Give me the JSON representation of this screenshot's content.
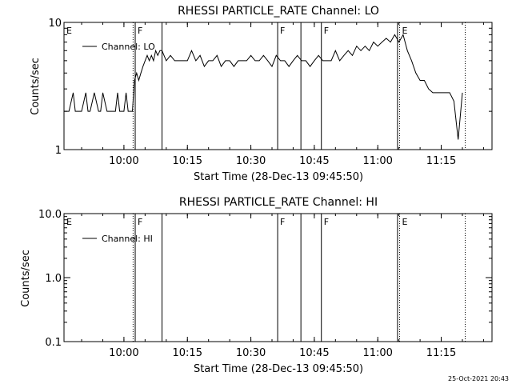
{
  "footer_timestamp": "25-Oct-2021 20:43",
  "chart_data": [
    {
      "type": "line",
      "title": "RHESSI PARTICLE_RATE Channel: LO",
      "xlabel": "Start Time (28-Dec-13 09:45:50)",
      "ylabel": "Counts/sec",
      "yscale": "log",
      "ylim": [
        1,
        10
      ],
      "ytick_values": [
        1,
        10
      ],
      "ytick_labels": [
        "1",
        "10"
      ],
      "xlim": [
        "09:45:50",
        "11:27:00"
      ],
      "xticks": [
        "10:00",
        "10:15",
        "10:30",
        "10:45",
        "11:00",
        "11:15"
      ],
      "legend": "top-left",
      "series": [
        {
          "name": "Channel: LO",
          "x": [
            "09:45:50",
            "09:47:00",
            "09:48:00",
            "09:48:30",
            "09:49:00",
            "09:50:00",
            "09:51:00",
            "09:51:30",
            "09:52:00",
            "09:53:00",
            "09:54:00",
            "09:54:30",
            "09:55:00",
            "09:56:00",
            "09:57:00",
            "09:58:00",
            "09:58:30",
            "09:59:00",
            "10:00:00",
            "10:00:30",
            "10:01:00",
            "10:02:00",
            "10:02:30",
            "10:03:00",
            "10:03:30",
            "10:04:00",
            "10:04:30",
            "10:05:00",
            "10:05:30",
            "10:06:00",
            "10:06:30",
            "10:07:00",
            "10:07:30",
            "10:08:00",
            "10:08:30",
            "10:09:00",
            "10:10:00",
            "10:11:00",
            "10:12:00",
            "10:13:00",
            "10:14:00",
            "10:15:00",
            "10:16:00",
            "10:17:00",
            "10:18:00",
            "10:19:00",
            "10:20:00",
            "10:21:00",
            "10:22:00",
            "10:23:00",
            "10:24:00",
            "10:25:00",
            "10:26:00",
            "10:27:00",
            "10:28:00",
            "10:29:00",
            "10:30:00",
            "10:31:00",
            "10:32:00",
            "10:33:00",
            "10:34:00",
            "10:35:00",
            "10:36:00",
            "10:37:00",
            "10:38:00",
            "10:39:00",
            "10:40:00",
            "10:41:00",
            "10:42:00",
            "10:43:00",
            "10:44:00",
            "10:45:00",
            "10:46:00",
            "10:47:00",
            "10:48:00",
            "10:49:00",
            "10:50:00",
            "10:51:00",
            "10:52:00",
            "10:53:00",
            "10:54:00",
            "10:55:00",
            "10:56:00",
            "10:57:00",
            "10:58:00",
            "10:59:00",
            "11:00:00",
            "11:01:00",
            "11:02:00",
            "11:03:00",
            "11:04:00",
            "11:05:00",
            "11:06:00",
            "11:07:00",
            "11:08:00",
            "11:09:00",
            "11:10:00",
            "11:11:00",
            "11:12:00",
            "11:13:00",
            "11:14:00",
            "11:15:00",
            "11:16:00",
            "11:17:00",
            "11:18:00",
            "11:19:00",
            "11:20:00"
          ],
          "y": [
            2,
            2,
            2.8,
            2,
            2,
            2,
            2.8,
            2,
            2,
            2.8,
            2,
            2,
            2.8,
            2,
            2,
            2,
            2.8,
            2,
            2,
            2.8,
            2,
            2,
            3.5,
            4,
            3.5,
            4,
            4.5,
            5,
            5.5,
            5,
            5.5,
            5,
            6,
            5.5,
            6,
            6,
            5,
            5.5,
            5,
            5,
            5,
            5,
            6,
            5,
            5.5,
            4.5,
            5,
            5,
            5.5,
            4.5,
            5,
            5,
            4.5,
            5,
            5,
            5,
            5.5,
            5,
            5,
            5.5,
            5,
            4.5,
            5.5,
            5,
            5,
            4.5,
            5,
            5.5,
            5,
            5,
            4.5,
            5,
            5.5,
            5,
            5,
            5,
            6,
            5,
            5.5,
            6,
            5.5,
            6.5,
            6,
            6.5,
            6,
            7,
            6.5,
            7,
            7.5,
            7,
            8,
            7,
            8,
            6,
            5,
            4,
            3.5,
            3.5,
            3,
            2.8,
            2.8,
            2.8,
            2.8,
            2.8,
            2.4,
            1.2,
            2.8
          ]
        }
      ],
      "flag_lines": [
        {
          "time": "09:45:50",
          "label": "E",
          "style": "solid"
        },
        {
          "time": "10:02:10",
          "label": "",
          "style": "dotted"
        },
        {
          "time": "10:02:40",
          "label": "F",
          "style": "solid"
        },
        {
          "time": "10:09:00",
          "label": "",
          "style": "solid"
        },
        {
          "time": "10:36:20",
          "label": "F",
          "style": "solid"
        },
        {
          "time": "10:41:50",
          "label": "",
          "style": "solid"
        },
        {
          "time": "10:46:40",
          "label": "F",
          "style": "solid"
        },
        {
          "time": "11:04:40",
          "label": "",
          "style": "solid"
        },
        {
          "time": "11:05:10",
          "label": "E",
          "style": "dotted"
        },
        {
          "time": "11:20:40",
          "label": "",
          "style": "dotted"
        }
      ]
    },
    {
      "type": "line",
      "title": "RHESSI PARTICLE_RATE Channel: HI",
      "xlabel": "Start Time (28-Dec-13 09:45:50)",
      "ylabel": "Counts/sec",
      "yscale": "log",
      "ylim": [
        0.1,
        10
      ],
      "ytick_values": [
        0.1,
        1,
        10
      ],
      "ytick_labels": [
        "0.1",
        "1.0",
        "10.0"
      ],
      "xlim": [
        "09:45:50",
        "11:27:00"
      ],
      "xticks": [
        "10:00",
        "10:15",
        "10:30",
        "10:45",
        "11:00",
        "11:15"
      ],
      "legend": "top-left",
      "series": [
        {
          "name": "Channel: HI",
          "x": [],
          "y": []
        }
      ],
      "flag_lines": [
        {
          "time": "09:45:50",
          "label": "E",
          "style": "solid"
        },
        {
          "time": "10:02:10",
          "label": "",
          "style": "dotted"
        },
        {
          "time": "10:02:40",
          "label": "F",
          "style": "solid"
        },
        {
          "time": "10:09:00",
          "label": "",
          "style": "solid"
        },
        {
          "time": "10:36:20",
          "label": "F",
          "style": "solid"
        },
        {
          "time": "10:41:50",
          "label": "",
          "style": "solid"
        },
        {
          "time": "10:46:40",
          "label": "F",
          "style": "solid"
        },
        {
          "time": "11:04:40",
          "label": "",
          "style": "solid"
        },
        {
          "time": "11:05:10",
          "label": "E",
          "style": "dotted"
        },
        {
          "time": "11:20:40",
          "label": "",
          "style": "dotted"
        }
      ]
    }
  ]
}
